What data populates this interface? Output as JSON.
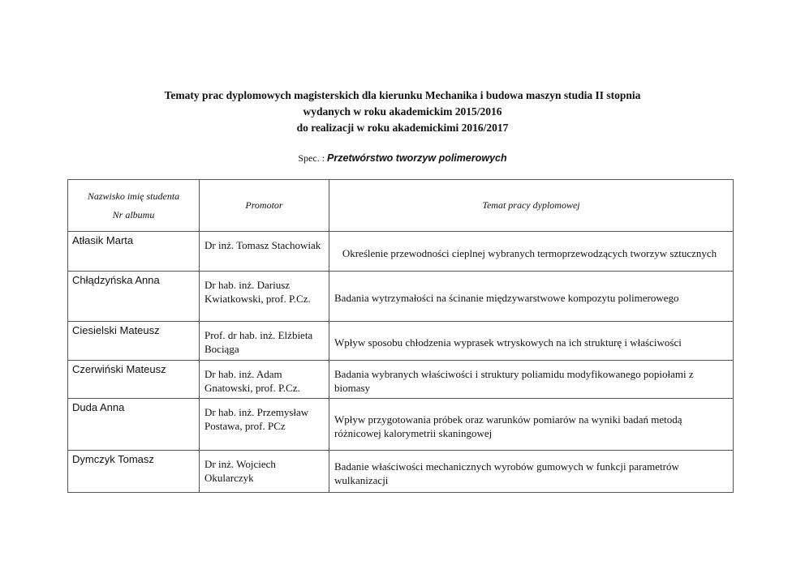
{
  "title_lines": [
    "Tematy prac dyplomowych magisterskich dla kierunku Mechanika i budowa maszyn  studia II stopnia",
    "wydanych w roku akademickim 2015/2016",
    "do realizacji w roku akademickimi 2016/2017"
  ],
  "spec": {
    "label": "Spec. : ",
    "value": "Przetwórstwo tworzyw polimerowych"
  },
  "table": {
    "headers": {
      "student_line1": "Nazwisko imię studenta",
      "student_line2": "Nr albumu",
      "promotor": "Promotor",
      "topic": "Temat pracy dyplomowej"
    },
    "rows": [
      {
        "student": "Atłasik Marta",
        "promotor": "Dr inż. Tomasz Stachowiak",
        "topic": "Określenie przewodności cieplnej wybranych termoprzewodzących tworzyw sztucznych"
      },
      {
        "student": "Chłądzyńska Anna",
        "promotor": "Dr hab. inż. Dariusz Kwiatkowski, prof. P.Cz.",
        "topic": "Badania wytrzymałości na ścinanie międzywarstwowe kompozytu polimerowego"
      },
      {
        "student": "Ciesielski Mateusz",
        "promotor": "Prof. dr hab. inż. Elżbieta Bociąga",
        "topic": "Wpływ sposobu chłodzenia wyprasek wtryskowych na ich strukturę i właściwości"
      },
      {
        "student": "Czerwiński Mateusz",
        "promotor": "Dr hab. inż. Adam Gnatowski, prof. P.Cz.",
        "topic": "Badania wybranych właściwości i struktury poliamidu modyfikowanego popiołami z biomasy"
      },
      {
        "student": "Duda Anna",
        "promotor": "Dr hab. inż. Przemysław Postawa, prof. PCz",
        "topic": "Wpływ przygotowania próbek oraz warunków pomiarów na wyniki badań metodą różnicowej kalorymetrii skaningowej"
      },
      {
        "student": "Dymczyk Tomasz",
        "promotor": "Dr inż. Wojciech Okularczyk",
        "topic": "Badanie właściwości mechanicznych wyrobów gumowych w funkcji parametrów wulkanizacji"
      }
    ]
  }
}
